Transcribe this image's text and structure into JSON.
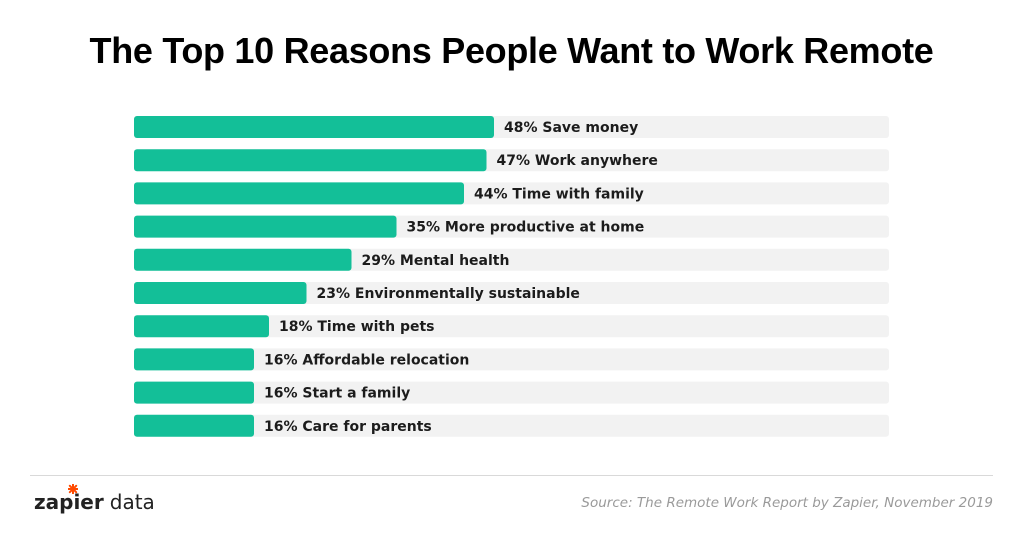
{
  "chart_data": {
    "type": "bar",
    "orientation": "horizontal",
    "title": "The Top 10 Reasons People Want to Work Remote",
    "categories": [
      "Save money",
      "Work anywhere",
      "Time with family",
      "More productive at home",
      "Mental health",
      "Environmentally sustainable",
      "Time with pets",
      "Affordable relocation",
      "Start a family",
      "Care for parents"
    ],
    "values": [
      48,
      47,
      44,
      35,
      29,
      23,
      18,
      16,
      16,
      16
    ],
    "labels": [
      "48% Save money",
      "47% Work anywhere",
      "44% Time with family",
      "35% More productive at home",
      "29% Mental health",
      "23% Environmentally sustainable",
      "18% Time with pets",
      "16% Affordable relocation",
      "16% Start a family",
      "16% Care for parents"
    ],
    "unit": "%",
    "xlim": [
      0,
      100
    ],
    "grid": false,
    "legend": "none",
    "bar_color": "#13bf98",
    "track_color": "#f2f2f2"
  },
  "footer": {
    "brand_name": "zapier",
    "brand_suffix": "data",
    "brand_color": "#ff4a00",
    "source": "Source: The Remote Work Report by Zapier, November 2019"
  }
}
